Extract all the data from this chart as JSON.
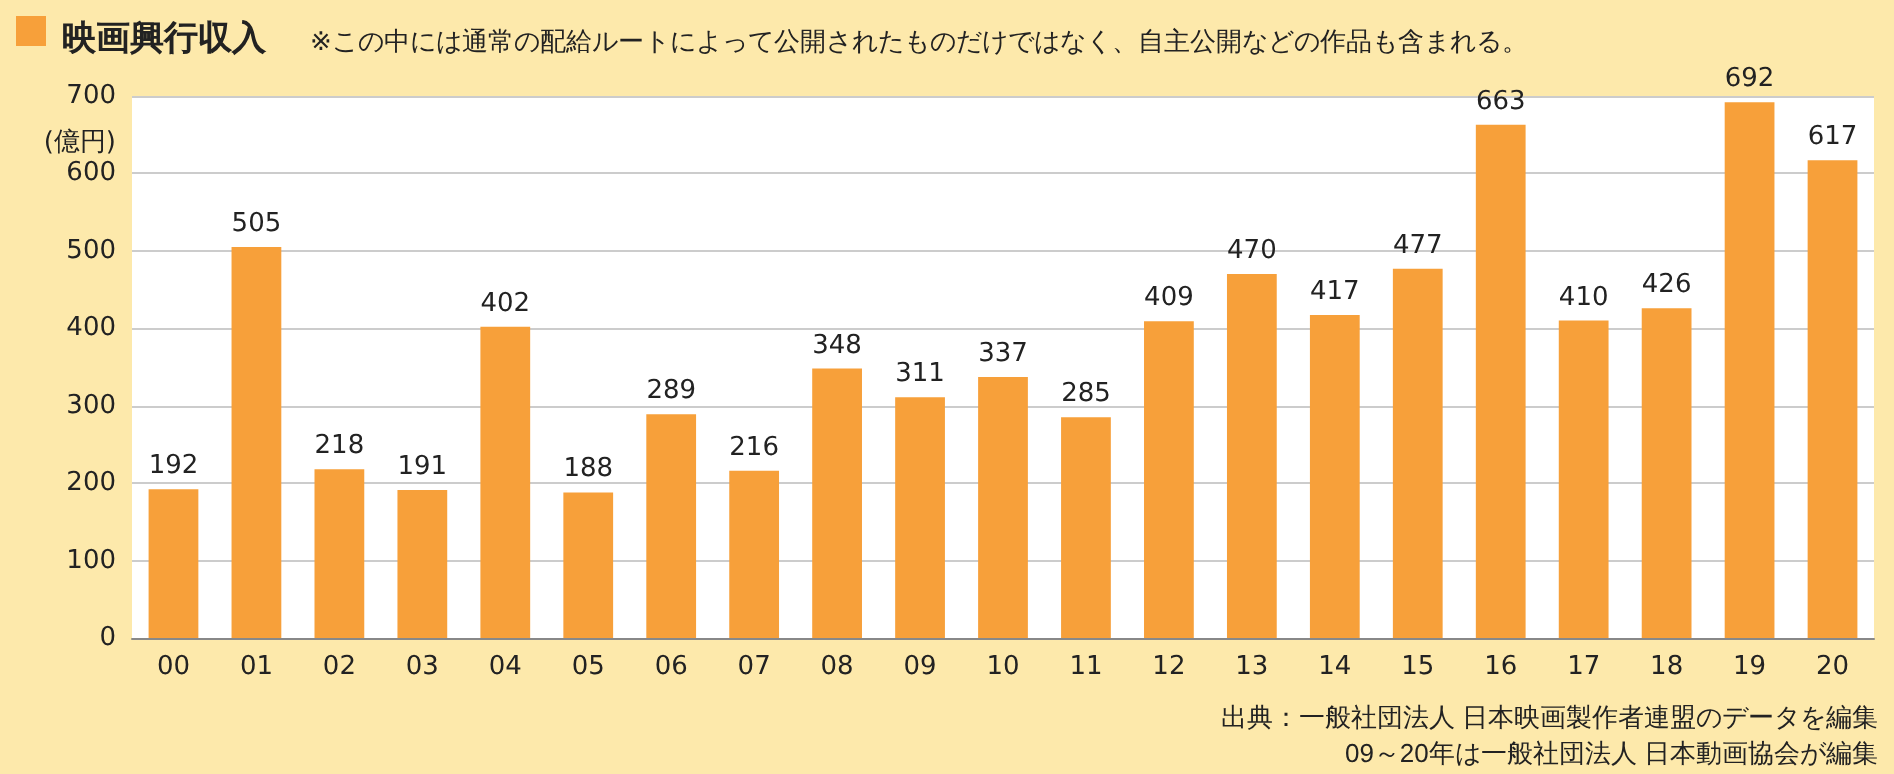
{
  "chart_data": {
    "type": "bar",
    "title": "映画興行収入",
    "subtitle": "※この中には通常の配給ルートによって公開されたものだけではなく、自主公開などの作品も含まれる。",
    "ylabel": "(億円)",
    "categories": [
      "00",
      "01",
      "02",
      "03",
      "04",
      "05",
      "06",
      "07",
      "08",
      "09",
      "10",
      "11",
      "12",
      "13",
      "14",
      "15",
      "16",
      "17",
      "18",
      "19",
      "20"
    ],
    "values": [
      192,
      505,
      218,
      191,
      402,
      188,
      289,
      216,
      348,
      311,
      337,
      285,
      409,
      470,
      417,
      477,
      663,
      410,
      426,
      692,
      617
    ],
    "color": "#f7a03a",
    "ylim": [
      0,
      700
    ],
    "yticks": [
      0,
      100,
      200,
      300,
      400,
      500,
      600,
      700
    ],
    "grid": "y",
    "data_labels": true,
    "annotations": [
      "出典：一般社団法人 日本映画製作者連盟のデータを編集",
      "09～20年は一般社団法人 日本動画協会が編集"
    ]
  }
}
